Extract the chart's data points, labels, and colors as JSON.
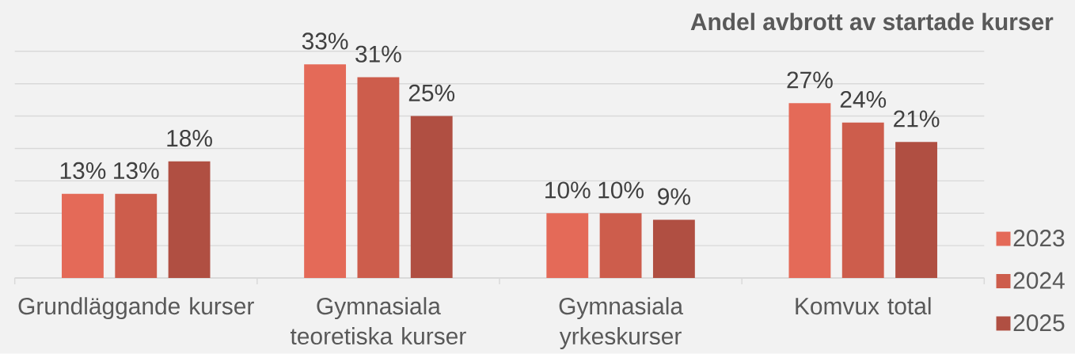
{
  "chart_data": {
    "type": "bar",
    "title": "Andel avbrott av startade kurser",
    "categories": [
      "Grundläggande kurser",
      "Gymnasiala teoretiska kurser",
      "Gymnasiala yrkeskurser",
      "Komvux total"
    ],
    "series": [
      {
        "name": "2023",
        "color": "#e46a58",
        "values": [
          13,
          33,
          10,
          27
        ],
        "value_labels": [
          "13%",
          "33%",
          "10%",
          "27%"
        ]
      },
      {
        "name": "2024",
        "color": "#cd5d4c",
        "values": [
          13,
          31,
          10,
          24
        ],
        "value_labels": [
          "13%",
          "31%",
          "10%",
          "24%"
        ]
      },
      {
        "name": "2025",
        "color": "#b04f42",
        "values": [
          18,
          25,
          9,
          21
        ],
        "value_labels": [
          "18%",
          "25%",
          "9%",
          "21%"
        ]
      }
    ],
    "ylim": [
      0,
      35
    ],
    "yticks": [
      {
        "value": 0,
        "label": null
      },
      {
        "value": 5,
        "label": null
      },
      {
        "value": 10,
        "label": null
      },
      {
        "value": 15,
        "label": null
      },
      {
        "value": 20,
        "label": null
      },
      {
        "value": 25,
        "label": null
      },
      {
        "value": 30,
        "label": null
      },
      {
        "value": 35,
        "label": null
      }
    ],
    "grid": "y",
    "legend": "right",
    "tick_labels": "x"
  }
}
